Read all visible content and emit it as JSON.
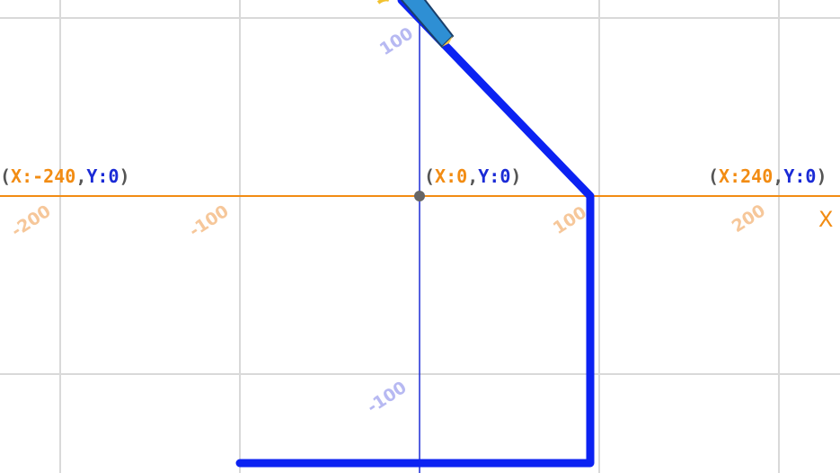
{
  "stage": {
    "colors": {
      "grid": "#d9d9d9",
      "x_axis": "#f28c13",
      "y_axis": "#1b2bd6",
      "x_ticks": "#f6c79a",
      "y_ticks": "#b7b9f2",
      "pen": "#0b22f2",
      "paren": "#555555",
      "origin_dot": "#666666"
    },
    "x_axis_label": "X",
    "coord_labels": [
      {
        "x_label": "X:",
        "x_value": "-240",
        "y_label": "Y:",
        "y_value": "0"
      },
      {
        "x_label": "X:",
        "x_value": "0",
        "y_label": "Y:",
        "y_value": "0"
      },
      {
        "x_label": "X:",
        "x_value": "240",
        "y_label": "Y:",
        "y_value": "0"
      }
    ],
    "x_ticks": [
      "-200",
      "-100",
      "100",
      "200"
    ],
    "y_ticks": [
      "100",
      "-100"
    ],
    "pen_path_points": [
      [
        -10,
        110
      ],
      [
        95,
        0
      ],
      [
        95,
        -150
      ],
      [
        -100,
        -150
      ]
    ],
    "sprite": {
      "name": "pencil-icon",
      "x": 0,
      "y": 100
    }
  }
}
